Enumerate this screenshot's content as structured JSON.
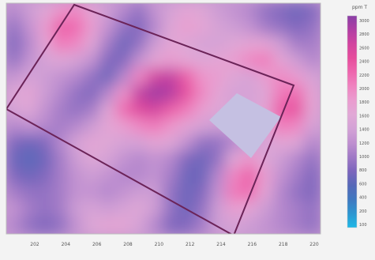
{
  "chart_data": {
    "type": "heatmap",
    "title": "",
    "xlabel": "",
    "ylabel": "",
    "colorbar": {
      "unit_label": "ppm T",
      "tick_labels": [
        "3000",
        "2800",
        "2600",
        "2400",
        "2200",
        "2000",
        "1800",
        "1600",
        "1400",
        "1200",
        "1000",
        "800",
        "600",
        "400",
        "200",
        "100"
      ],
      "colors": [
        "#8a3fa6",
        "#b13ea3",
        "#d2439f",
        "#e64d9c",
        "#ee66ae",
        "#ef84c0",
        "#ea9ccf",
        "#e1a8d6",
        "#d3a2d6",
        "#bf8fd0",
        "#9f79c6",
        "#7c65bd",
        "#5668b8",
        "#3f78c0",
        "#2d95d0",
        "#1fb8e6"
      ]
    },
    "x_tick_labels": [
      "202",
      "204",
      "206",
      "208",
      "210",
      "212",
      "214",
      "216",
      "218",
      "220"
    ],
    "field_description_note": "",
    "grid": {
      "cols": 20,
      "rows": 14,
      "values": [
        [
          1200,
          1400,
          1600,
          1900,
          2000,
          1700,
          1400,
          1200,
          1000,
          1300,
          1500,
          1700,
          1600,
          1400,
          1300,
          1200,
          1000,
          900,
          800,
          900
        ],
        [
          1000,
          1300,
          1800,
          2300,
          2200,
          1800,
          1300,
          1000,
          900,
          1200,
          1600,
          1800,
          1700,
          1500,
          1400,
          1300,
          1100,
          1000,
          900,
          1000
        ],
        [
          900,
          1200,
          1700,
          2100,
          2000,
          1600,
          1100,
          800,
          1000,
          1400,
          1700,
          1600,
          1500,
          1500,
          1600,
          1700,
          1700,
          1400,
          1100,
          1100
        ],
        [
          1000,
          1300,
          1500,
          1600,
          1500,
          1300,
          900,
          900,
          1300,
          1700,
          1800,
          1700,
          1600,
          1700,
          1800,
          2000,
          2100,
          1700,
          1400,
          1200
        ],
        [
          1300,
          1500,
          1400,
          1300,
          1200,
          1000,
          800,
          1200,
          2000,
          2600,
          2700,
          2300,
          1900,
          1800,
          1600,
          1500,
          1800,
          2000,
          1800,
          1500
        ],
        [
          1600,
          1700,
          1400,
          1200,
          1000,
          900,
          1200,
          1900,
          2700,
          2900,
          2800,
          2400,
          2000,
          1700,
          1500,
          1500,
          1600,
          2100,
          2200,
          1700
        ],
        [
          1500,
          1600,
          1300,
          1100,
          1000,
          1100,
          1600,
          2200,
          2500,
          2600,
          2300,
          2100,
          1800,
          1600,
          1500,
          1500,
          1700,
          2300,
          2400,
          1700
        ],
        [
          1200,
          1300,
          1200,
          1100,
          1200,
          1400,
          1700,
          1800,
          2000,
          2100,
          1900,
          1700,
          1500,
          1400,
          1400,
          1500,
          1700,
          2100,
          2000,
          1500
        ],
        [
          900,
          800,
          900,
          1200,
          1500,
          1700,
          1600,
          1500,
          1500,
          1700,
          1600,
          1300,
          1000,
          1000,
          1200,
          1400,
          1500,
          1700,
          1600,
          1200
        ],
        [
          800,
          700,
          800,
          1100,
          1400,
          1600,
          1500,
          1300,
          1200,
          1300,
          1200,
          900,
          800,
          1000,
          1600,
          1900,
          1600,
          1400,
          1200,
          1000
        ],
        [
          900,
          800,
          900,
          1100,
          1300,
          1400,
          1300,
          1200,
          1200,
          1300,
          1100,
          800,
          800,
          1200,
          2000,
          2300,
          1800,
          1300,
          1100,
          900
        ],
        [
          1100,
          1000,
          1000,
          1100,
          1300,
          1300,
          1200,
          1300,
          1400,
          1400,
          1000,
          800,
          900,
          1300,
          2100,
          2200,
          1700,
          1200,
          1000,
          900
        ],
        [
          1300,
          1100,
          1000,
          1100,
          1400,
          1500,
          1400,
          1500,
          1600,
          1400,
          1000,
          800,
          1000,
          1400,
          1800,
          1700,
          1400,
          1200,
          1100,
          1000
        ],
        [
          1200,
          1000,
          900,
          1000,
          1300,
          1600,
          1700,
          1700,
          1500,
          1200,
          900,
          900,
          1100,
          1400,
          1500,
          1400,
          1300,
          1200,
          1100,
          1000
        ]
      ]
    },
    "overlays": {
      "excluded_region_color": "#c5c0e2",
      "outline_color": "#6b2358"
    }
  }
}
